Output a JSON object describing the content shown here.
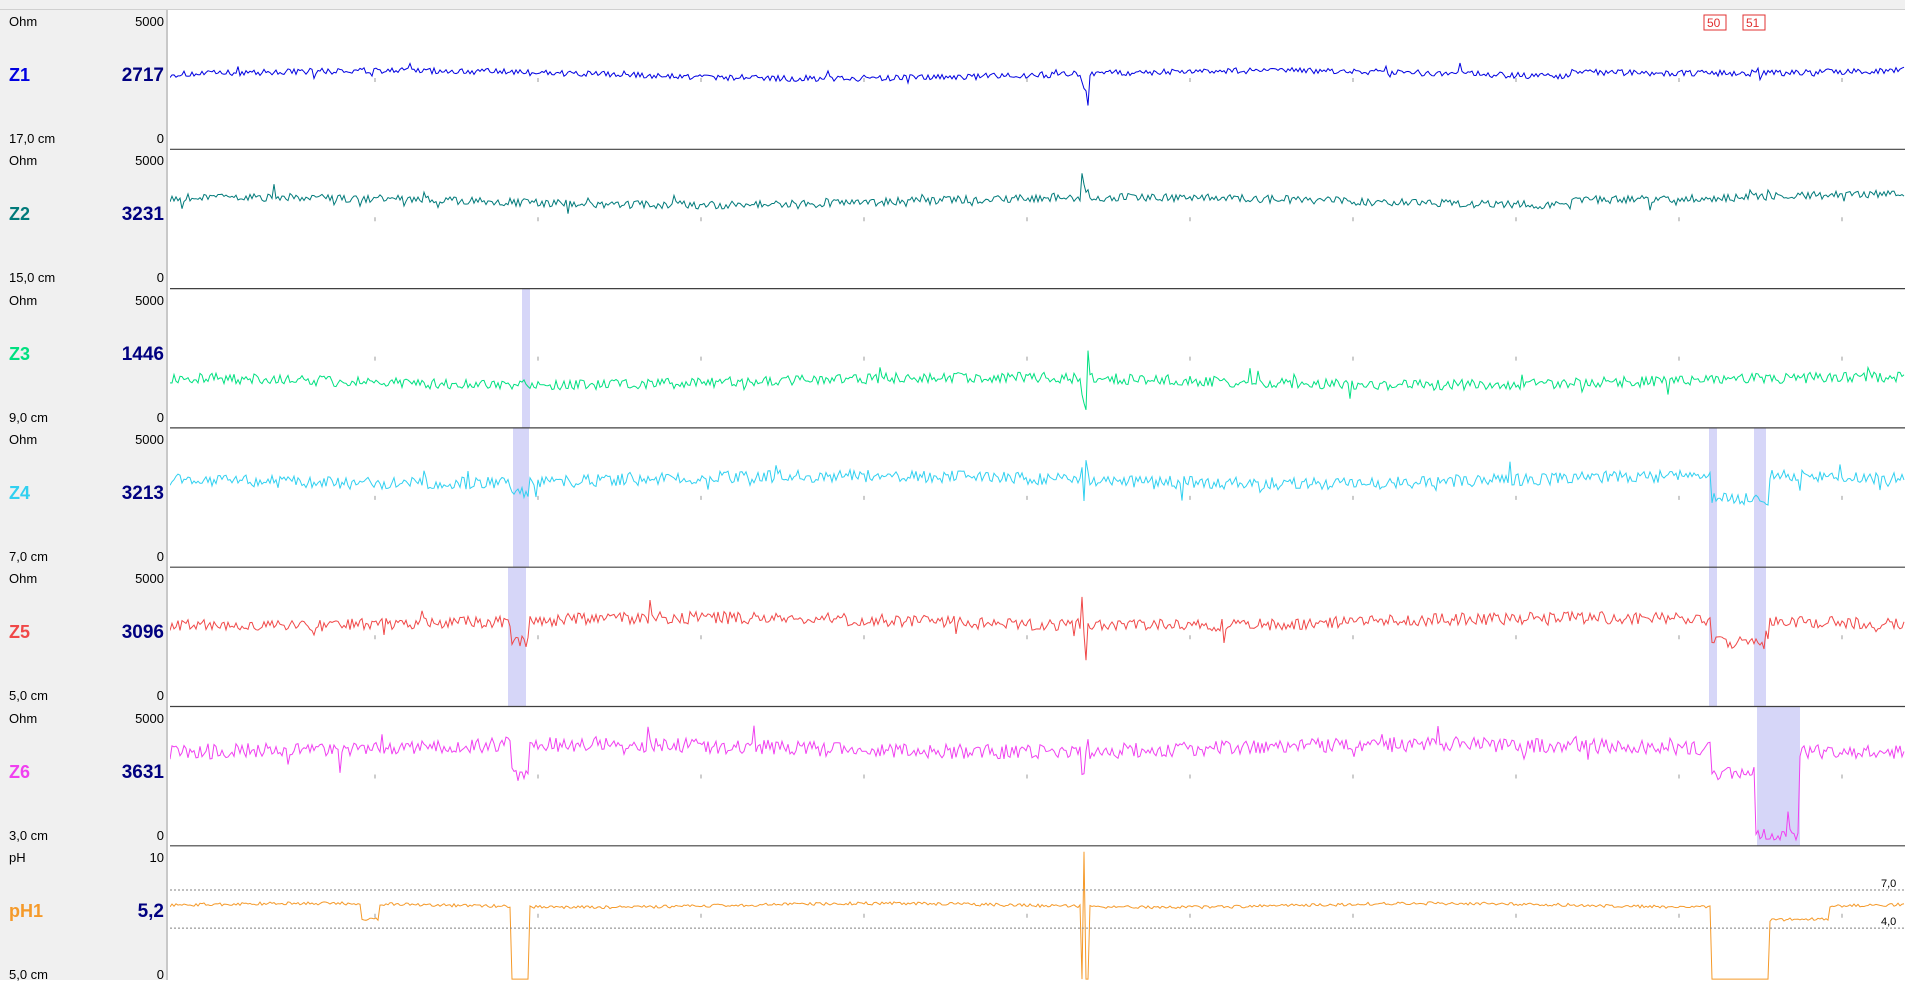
{
  "channels": [
    {
      "name": "Z1",
      "unit": "Ohm",
      "max": "5000",
      "min": "0",
      "value": "2717",
      "position": "17,0 cm",
      "color": "#0000e0"
    },
    {
      "name": "Z2",
      "unit": "Ohm",
      "max": "5000",
      "min": "0",
      "value": "3231",
      "position": "15,0 cm",
      "color": "#007a7a"
    },
    {
      "name": "Z3",
      "unit": "Ohm",
      "max": "5000",
      "min": "0",
      "value": "1446",
      "position": "9,0 cm",
      "color": "#00e080"
    },
    {
      "name": "Z4",
      "unit": "Ohm",
      "max": "5000",
      "min": "0",
      "value": "3213",
      "position": "7,0 cm",
      "color": "#30d0f0"
    },
    {
      "name": "Z5",
      "unit": "Ohm",
      "max": "5000",
      "min": "0",
      "value": "3096",
      "position": "5,0 cm",
      "color": "#f04848"
    },
    {
      "name": "Z6",
      "unit": "Ohm",
      "max": "5000",
      "min": "0",
      "value": "3631",
      "position": "3,0 cm",
      "color": "#f040f0"
    },
    {
      "name": "pH1",
      "unit": "pH",
      "max": "10",
      "min": "0",
      "value": "5,2",
      "position": "5,0 cm",
      "color": "#f59a2a"
    }
  ],
  "chart_data": {
    "type": "line",
    "ph_reference_lines": [
      "7,0",
      "4,0"
    ],
    "event_markers": [
      "50",
      "51"
    ],
    "series_levels": [
      {
        "name": "Z1",
        "ylim": [
          0,
          5000
        ],
        "baseline": 2700
      },
      {
        "name": "Z2",
        "ylim": [
          0,
          5000
        ],
        "baseline": 3200
      },
      {
        "name": "Z3",
        "ylim": [
          0,
          5000
        ],
        "baseline": 1600
      },
      {
        "name": "Z4",
        "ylim": [
          0,
          5000
        ],
        "baseline": 3200
      },
      {
        "name": "Z5",
        "ylim": [
          0,
          5000
        ],
        "baseline": 3100
      },
      {
        "name": "Z6",
        "ylim": [
          0,
          5000
        ],
        "baseline": 3600
      },
      {
        "name": "pH1",
        "ylim": [
          0,
          10
        ],
        "baseline": 5.8
      }
    ]
  }
}
